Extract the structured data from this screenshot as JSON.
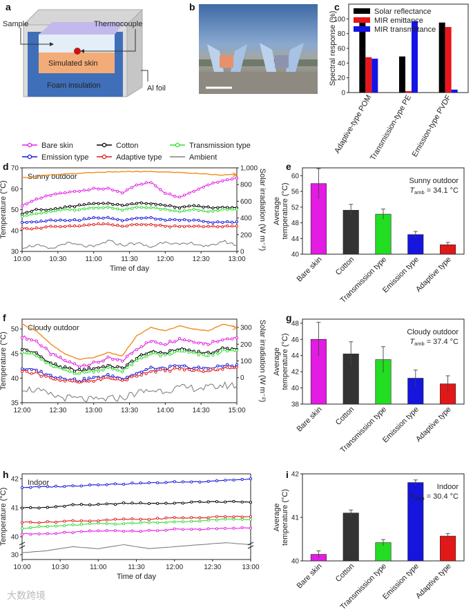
{
  "panel_a": {
    "letter": "a",
    "labels": {
      "sample": "Sample",
      "thermocouple": "Thermocouple",
      "skin": "Simulated skin",
      "foam": "Foam insulation",
      "foil": "Al foil"
    }
  },
  "panel_b": {
    "letter": "b"
  },
  "panel_c": {
    "letter": "c",
    "chart_data": {
      "type": "bar",
      "categories": [
        "Adaptive-type POM",
        "Transmission-type PE",
        "Emission-type PVDF"
      ],
      "series": [
        {
          "name": "Solar reflectance",
          "color": "#000000",
          "values": [
            95,
            49,
            95
          ]
        },
        {
          "name": "MIR emittance",
          "color": "#e8151b",
          "values": [
            48,
            2,
            89
          ]
        },
        {
          "name": "MIR transmittance",
          "color": "#1414e6",
          "values": [
            46,
            97,
            4
          ]
        }
      ],
      "ylabel": "Spectral response (%)",
      "ylim": [
        0,
        120
      ],
      "yticks": [
        0,
        20,
        40,
        60,
        80,
        100
      ]
    }
  },
  "legend": {
    "items": [
      {
        "label": "Bare skin",
        "color": "#e31be3"
      },
      {
        "label": "Cotton",
        "color": "#000000"
      },
      {
        "label": "Transmission type",
        "color": "#33dd33"
      },
      {
        "label": "Emission type",
        "color": "#1515dd"
      },
      {
        "label": "Adaptive type",
        "color": "#e01818"
      },
      {
        "label": "Ambient",
        "color": "#808080"
      }
    ]
  },
  "panel_d": {
    "letter": "d",
    "note": "Sunny outdoor",
    "chart_data": {
      "type": "line",
      "xlabel": "Time of day",
      "xticks": [
        "10:00",
        "10:30",
        "11:00",
        "11:30",
        "12:00",
        "12:30",
        "13:00"
      ],
      "ylabel": "Temperature (°C)",
      "ylim": [
        30,
        70
      ],
      "yticks": [
        30,
        40,
        50,
        60,
        70
      ],
      "y2label": "Solar irradiation (W m⁻²)",
      "y2lim": [
        0,
        1000
      ],
      "y2ticks": [
        "0",
        "200",
        "400",
        "600",
        "800",
        "1,000"
      ],
      "series": [
        {
          "name": "Bare skin",
          "values": [
            52,
            55,
            57,
            58,
            59,
            60,
            60,
            58,
            62,
            63,
            58,
            56,
            59,
            62,
            64,
            65
          ]
        },
        {
          "name": "Cotton",
          "values": [
            48,
            50,
            50,
            51,
            52,
            53,
            53,
            52,
            53,
            53,
            52,
            51,
            52,
            51,
            51,
            51
          ]
        },
        {
          "name": "Transmission type",
          "values": [
            47,
            48,
            49,
            50,
            50,
            51,
            51,
            50,
            51,
            51,
            50,
            49,
            50,
            49,
            50,
            50
          ]
        },
        {
          "name": "Emission type",
          "values": [
            44,
            44,
            45,
            45,
            45,
            46,
            46,
            45,
            46,
            46,
            45,
            45,
            45,
            44,
            44,
            44
          ]
        },
        {
          "name": "Adaptive type",
          "values": [
            41,
            41,
            42,
            42,
            42,
            43,
            43,
            42,
            43,
            43,
            42,
            42,
            42,
            42,
            42,
            42
          ]
        },
        {
          "name": "Ambient",
          "values": [
            32,
            33,
            31,
            34,
            33,
            32,
            35,
            33,
            34,
            32,
            35,
            33,
            34,
            32,
            35,
            33
          ]
        },
        {
          "name": "Solar irradiation",
          "axis": "y2",
          "color": "#f08c1c",
          "values": [
            880,
            900,
            915,
            925,
            935,
            945,
            950,
            955,
            955,
            955,
            950,
            945,
            935,
            925,
            915,
            920
          ]
        }
      ]
    }
  },
  "panel_e": {
    "letter": "e",
    "note": "Sunny outdoor",
    "tamb": "= 34.1 °C",
    "chart_data": {
      "type": "bar",
      "categories": [
        "Bare skin",
        "Cotton",
        "Transmission type",
        "Emission type",
        "Adaptive type"
      ],
      "values": [
        58.0,
        51.2,
        50.2,
        45.0,
        42.4
      ],
      "errors": [
        3.8,
        1.5,
        1.3,
        0.8,
        0.6
      ],
      "colors": [
        "#e31be3",
        "#333333",
        "#22dd22",
        "#1515dd",
        "#e01818"
      ],
      "ylabel": "Average temperature (°C)",
      "ylim": [
        40,
        62
      ],
      "yticks": [
        40,
        44,
        48,
        52,
        56,
        60
      ]
    }
  },
  "panel_f": {
    "letter": "f",
    "note": "Cloudy outdoor",
    "chart_data": {
      "type": "line",
      "xlabel": "",
      "xticks": [
        "12:00",
        "12:30",
        "13:00",
        "13:30",
        "14:00",
        "14:30",
        "15:00"
      ],
      "ylabel": "Temperature (°C)",
      "ylim": [
        35,
        52
      ],
      "yticks": [
        35,
        40,
        45,
        50
      ],
      "y2label": "Solar irradiation (W m⁻²)",
      "y2lim": [
        -150,
        350
      ],
      "y2ticks": [
        "0",
        "100",
        "200",
        "300"
      ],
      "series": [
        {
          "name": "Bare skin",
          "values": [
            48.5,
            47.5,
            45,
            43.5,
            42.5,
            43,
            44,
            43.5,
            46,
            47.5,
            47,
            48,
            47.5,
            47,
            48,
            48
          ]
        },
        {
          "name": "Cotton",
          "values": [
            46,
            45,
            43,
            42,
            41.5,
            42,
            42.5,
            42,
            44,
            45.5,
            45,
            46,
            45.5,
            45,
            46,
            46
          ]
        },
        {
          "name": "Transmission type",
          "values": [
            45.5,
            44.5,
            42.5,
            41.5,
            41,
            41.5,
            42,
            41.5,
            43.5,
            45,
            44.5,
            45.5,
            45,
            44.5,
            45.5,
            45.5
          ]
        },
        {
          "name": "Emission type",
          "values": [
            42,
            41.5,
            40.5,
            40,
            39.5,
            40,
            40.5,
            40,
            41,
            42,
            42,
            42.5,
            42,
            42,
            42.5,
            42.5
          ]
        },
        {
          "name": "Adaptive type",
          "values": [
            41.5,
            41,
            40,
            39.5,
            39,
            39.5,
            40,
            39.5,
            40.5,
            41.5,
            41.5,
            42,
            41.5,
            41.5,
            42,
            42
          ]
        },
        {
          "name": "Ambient",
          "values": [
            38,
            37.5,
            36.5,
            36,
            35.8,
            35.5,
            35.8,
            36,
            37,
            37.5,
            37.5,
            38,
            38,
            38,
            38.5,
            38.5
          ]
        },
        {
          "name": "Solar irradiation",
          "axis": "y2",
          "color": "#f08c1c",
          "values": [
            320,
            280,
            200,
            140,
            110,
            120,
            150,
            130,
            250,
            300,
            280,
            310,
            290,
            280,
            320,
            300
          ]
        }
      ]
    }
  },
  "panel_g": {
    "letter": "g",
    "note": "Cloudy outdoor",
    "tamb": "= 37.4 °C",
    "chart_data": {
      "type": "bar",
      "categories": [
        "Bare skin",
        "Cotton",
        "Transmission type",
        "Emission type",
        "Adaptive type"
      ],
      "values": [
        46.0,
        44.2,
        43.5,
        41.2,
        40.5
      ],
      "errors": [
        2.1,
        1.5,
        1.6,
        1.0,
        1.0
      ],
      "colors": [
        "#e31be3",
        "#333333",
        "#22dd22",
        "#1515dd",
        "#e01818"
      ],
      "ylabel": "Average temperature (°C)",
      "ylim": [
        38,
        48.5
      ],
      "yticks": [
        38,
        40,
        42,
        44,
        46,
        48
      ]
    }
  },
  "panel_h": {
    "letter": "h",
    "note": "Indoor",
    "chart_data": {
      "type": "line",
      "xlabel": "Time of day",
      "xticks": [
        "10:00",
        "10:30",
        "11:00",
        "11:30",
        "12:00",
        "12:30",
        "13:00"
      ],
      "ylabel": "Temperature (°C)",
      "yticks": [
        "30",
        "40",
        "41",
        "42"
      ],
      "series": [
        {
          "name": "Bare skin",
          "values": [
            40.1,
            40.1,
            40.15,
            40.2,
            40.2,
            40.2,
            40.25,
            40.25,
            40.3,
            40.3
          ]
        },
        {
          "name": "Cotton",
          "values": [
            41.0,
            41.0,
            41.1,
            41.1,
            41.15,
            41.15,
            41.15,
            41.2,
            41.2,
            41.2
          ]
        },
        {
          "name": "Transmission type",
          "values": [
            40.3,
            40.35,
            40.4,
            40.45,
            40.45,
            40.5,
            40.5,
            40.55,
            40.6,
            40.6
          ]
        },
        {
          "name": "Emission type",
          "values": [
            41.7,
            41.72,
            41.75,
            41.8,
            41.82,
            41.85,
            41.88,
            41.9,
            41.95,
            41.98
          ]
        },
        {
          "name": "Adaptive type",
          "values": [
            40.5,
            40.5,
            40.55,
            40.55,
            40.6,
            40.6,
            40.65,
            40.65,
            40.7,
            40.7
          ]
        },
        {
          "name": "Ambient",
          "values": [
            31,
            32,
            34,
            33,
            35,
            33,
            34,
            35,
            36,
            35
          ]
        }
      ]
    }
  },
  "panel_i": {
    "letter": "i",
    "note": "Indoor",
    "tamb": "= 30.4 °C",
    "chart_data": {
      "type": "bar",
      "categories": [
        "Bare skin",
        "Cotton",
        "Transmission type",
        "Emission type",
        "Adaptive type"
      ],
      "values": [
        40.15,
        41.1,
        40.42,
        41.8,
        40.57
      ],
      "errors": [
        0.08,
        0.07,
        0.07,
        0.06,
        0.06
      ],
      "colors": [
        "#e31be3",
        "#333333",
        "#22dd22",
        "#1515dd",
        "#e01818"
      ],
      "ylabel": "Average temperature (°C)",
      "ylim": [
        40,
        42
      ],
      "yticks": [
        40,
        41,
        42
      ]
    }
  },
  "watermark": "大数跨境"
}
